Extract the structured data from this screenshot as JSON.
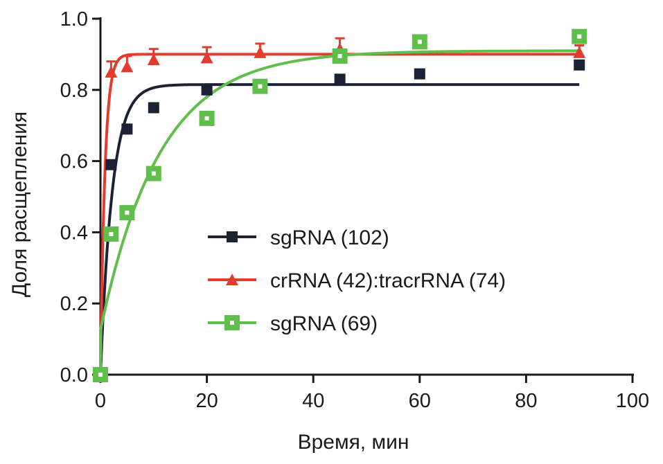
{
  "chart_data": {
    "type": "scatter",
    "title": "",
    "xlabel": "Время, мин",
    "ylabel": "Доля расщепления",
    "xlim": [
      0,
      100
    ],
    "ylim": [
      0,
      1.0
    ],
    "xticks": [
      0,
      20,
      40,
      60,
      80,
      100
    ],
    "yticks": [
      0.0,
      0.2,
      0.4,
      0.6,
      0.8,
      1.0
    ],
    "xtick_labels": [
      "0",
      "20",
      "40",
      "60",
      "80",
      "100"
    ],
    "ytick_labels": [
      "0.0",
      "0.2",
      "0.4",
      "0.6",
      "0.8",
      "1.0"
    ],
    "grid": false,
    "legend_position": "center-right",
    "series": [
      {
        "name": "sgRNA (102)",
        "marker": "square",
        "color": "#1c2233",
        "x": [
          0,
          2,
          5,
          10,
          20,
          30,
          45,
          60,
          90
        ],
        "y": [
          0.0,
          0.59,
          0.69,
          0.75,
          0.8,
          0.815,
          0.83,
          0.845,
          0.87
        ],
        "fit": {
          "plateau": 0.815,
          "k": 0.45,
          "y0": 0.0
        }
      },
      {
        "name": "crRNA (42):tracrRNA (74)",
        "marker": "triangle",
        "color": "#e53b2f",
        "x": [
          0,
          2,
          5,
          10,
          20,
          30,
          45,
          90
        ],
        "y": [
          0.0,
          0.85,
          0.865,
          0.885,
          0.89,
          0.905,
          0.915,
          0.905
        ],
        "err": [
          0.0,
          0.03,
          0.03,
          0.03,
          0.03,
          0.025,
          0.03,
          0.02
        ],
        "fit": {
          "plateau": 0.9,
          "k": 1.2,
          "y0": 0.0
        }
      },
      {
        "name": "sgRNA (69)",
        "marker": "hollow-square",
        "color": "#5fbf4a",
        "x": [
          0,
          2,
          5,
          10,
          20,
          30,
          45,
          60,
          90
        ],
        "y": [
          0.0,
          0.395,
          0.455,
          0.565,
          0.72,
          0.81,
          0.895,
          0.935,
          0.95
        ],
        "fit": {
          "plateau": 0.91,
          "k": 0.09,
          "y0": 0.125
        }
      }
    ]
  }
}
